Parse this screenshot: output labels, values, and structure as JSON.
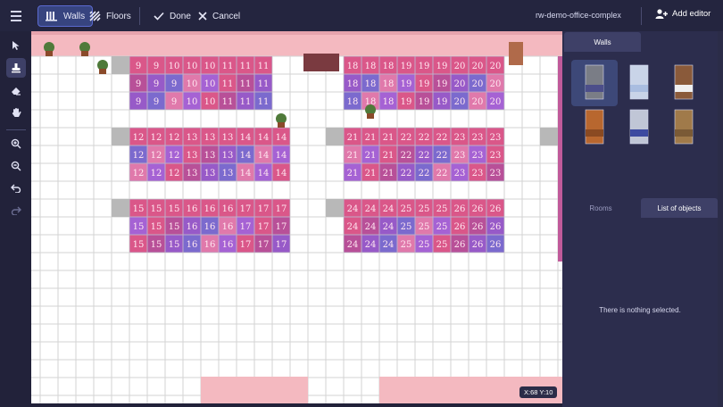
{
  "topbar": {
    "walls_label": "Walls",
    "floors_label": "Floors",
    "done_label": "Done",
    "cancel_label": "Cancel",
    "office_name": "rw-demo-office-complex",
    "add_editor_label": "Add editor"
  },
  "canvas": {
    "coords_text": "X:68  Y:10",
    "desk_groups": [
      {
        "rows": [
          [
            "9",
            "9",
            "10",
            "10",
            "10",
            "11",
            "11",
            "11"
          ],
          [
            "9",
            "9",
            "9",
            "10",
            "10",
            "11",
            "11",
            "11"
          ],
          [
            "9",
            "9",
            "9",
            "10",
            "10",
            "11",
            "11",
            "11"
          ]
        ]
      },
      {
        "rows": [
          [
            "18",
            "18",
            "18",
            "19",
            "19",
            "19",
            "20",
            "20",
            "20"
          ],
          [
            "18",
            "18",
            "18",
            "19",
            "19",
            "19",
            "20",
            "20",
            "20"
          ],
          [
            "18",
            "18",
            "18",
            "19",
            "19",
            "19",
            "20",
            "20",
            "20"
          ]
        ]
      },
      {
        "rows": [
          [
            "12",
            "12",
            "12",
            "13",
            "13",
            "13",
            "14",
            "14",
            "14"
          ],
          [
            "12",
            "12",
            "12",
            "13",
            "13",
            "13",
            "14",
            "14",
            "14"
          ],
          [
            "12",
            "12",
            "12",
            "13",
            "13",
            "13",
            "14",
            "14",
            "14"
          ]
        ]
      },
      {
        "rows": [
          [
            "21",
            "21",
            "21",
            "22",
            "22",
            "22",
            "23",
            "23",
            "23"
          ],
          [
            "21",
            "21",
            "21",
            "22",
            "22",
            "22",
            "23",
            "23",
            "23"
          ],
          [
            "21",
            "21",
            "21",
            "22",
            "22",
            "22",
            "23",
            "23",
            "23"
          ]
        ]
      },
      {
        "rows": [
          [
            "15",
            "15",
            "15",
            "16",
            "16",
            "16",
            "17",
            "17",
            "17"
          ],
          [
            "15",
            "15",
            "15",
            "16",
            "16",
            "16",
            "17",
            "17",
            "17"
          ],
          [
            "15",
            "15",
            "15",
            "16",
            "16",
            "16",
            "17",
            "17",
            "17"
          ]
        ]
      },
      {
        "rows": [
          [
            "24",
            "24",
            "24",
            "25",
            "25",
            "25",
            "26",
            "26",
            "26"
          ],
          [
            "24",
            "24",
            "24",
            "25",
            "25",
            "25",
            "26",
            "26",
            "26"
          ],
          [
            "24",
            "24",
            "24",
            "25",
            "25",
            "25",
            "26",
            "26",
            "26"
          ]
        ]
      }
    ]
  },
  "right_panel": {
    "tab_walls": "Walls",
    "tab_rooms": "Rooms",
    "tab_list": "List of objects",
    "empty_message": "There is nothing selected.",
    "wall_tiles": [
      "gray-wall",
      "light-blue-wall",
      "brown-stripe-wall",
      "brick-wall",
      "blue-panel-wall",
      "wood-brick-wall"
    ]
  },
  "colors": {
    "accent": "#5b6ad0",
    "desk_pink": "#d94278",
    "desk_purple": "#8b45c2",
    "wall_pink": "#f4b9c0",
    "panel_bg": "#2c2d4d"
  }
}
